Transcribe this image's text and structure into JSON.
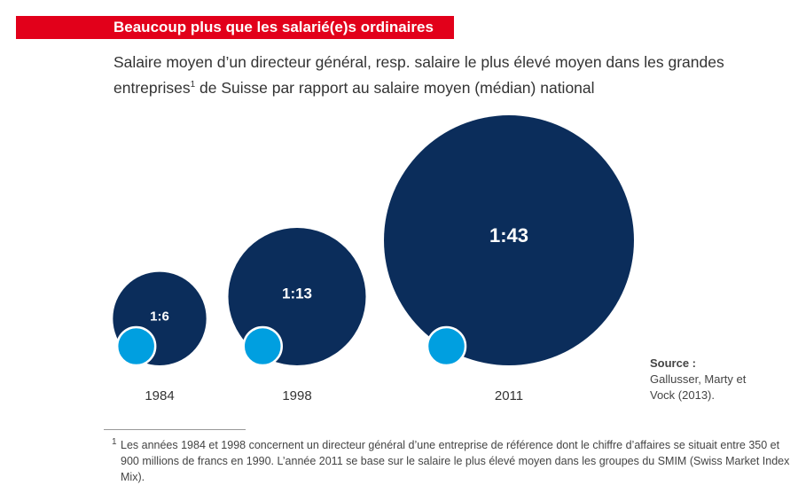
{
  "header": {
    "banner": "Beaucoup plus que les salarié(e)s ordinaires",
    "subtitle": "Salaire moyen d’un directeur général, resp. salaire le plus élevé moyen dans les grandes entreprises",
    "subtitle_sup": "1",
    "subtitle_rest": " de Suisse par rapport au salaire moyen (médian) national"
  },
  "chart_data": {
    "type": "bubble",
    "categories": [
      "1984",
      "1998",
      "2011"
    ],
    "values": [
      6,
      13,
      43
    ],
    "labels": [
      "1:6",
      "1:13",
      "1:43"
    ],
    "reference_value": 1,
    "colors": {
      "bubble": "#0b2d5b",
      "reference": "#009fe0",
      "accent": "#e2001a"
    }
  },
  "source": {
    "title": "Source :",
    "text": "Gallusser, Marty et Vock (2013)."
  },
  "footnote": {
    "marker": "1",
    "text": "Les années 1984 et 1998 concernent un directeur général d’une entreprise de référence dont le chiffre d’affaires se situait entre 350 et 900 millions de francs en 1990. L’année 2011 se base sur le salaire le plus élevé moyen dans les groupes du SMIM (Swiss Market Index Mix)."
  }
}
